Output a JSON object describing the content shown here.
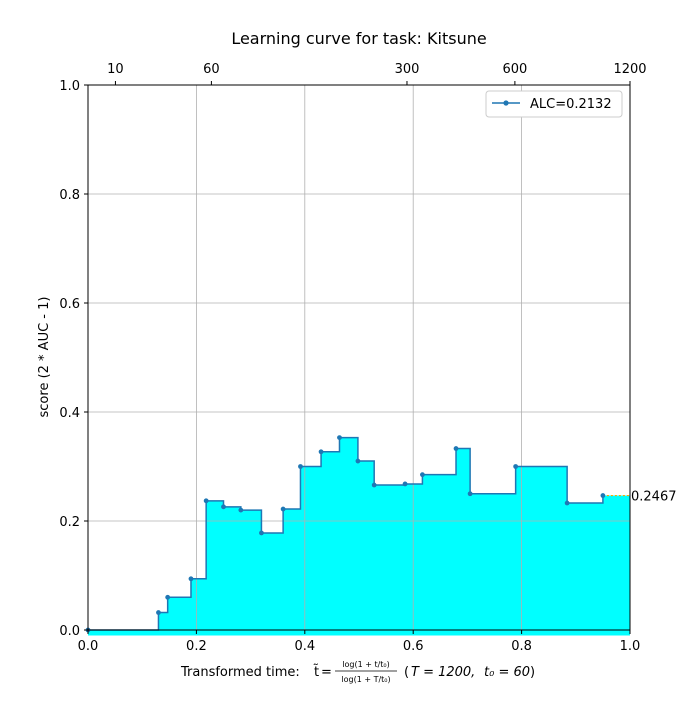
{
  "chart_data": {
    "type": "line",
    "title": "Learning curve for task: Kitsune",
    "ylabel": "score (2 * AUC - 1)",
    "xlabel": {
      "prefix": "Transformed time: ",
      "t_symbol": "t̃",
      "equals": " = ",
      "numerator": "log(1 + t/t₀)",
      "denominator": "log(1 + T/t₀)",
      "params_open": "(",
      "T_param": "T = 1200,",
      "t0_param": "t₀ = 60",
      "params_close": ")"
    },
    "xlim": [
      0.0,
      1.0
    ],
    "ylim": [
      0.0,
      1.0
    ],
    "x_ticks": [
      "0.0",
      "0.2",
      "0.4",
      "0.6",
      "0.8",
      "1.0"
    ],
    "y_ticks": [
      "0.0",
      "0.2",
      "0.4",
      "0.6",
      "0.8",
      "1.0"
    ],
    "top_axis_ticks": [
      {
        "t": 10,
        "label": "10"
      },
      {
        "t": 60,
        "label": "60"
      },
      {
        "t": 300,
        "label": "300"
      },
      {
        "t": 600,
        "label": "600"
      },
      {
        "t": 1200,
        "label": "1200"
      }
    ],
    "time_budget": 1200,
    "t0": 60,
    "grid": true,
    "legend_position": "top-right",
    "series": [
      {
        "name": "ALC=0.2132",
        "color": "#1f77b4",
        "fill_color": "#00ffff",
        "step": "post",
        "x": [
          0.0,
          0.13,
          0.147,
          0.19,
          0.218,
          0.25,
          0.282,
          0.32,
          0.36,
          0.392,
          0.43,
          0.464,
          0.498,
          0.528,
          0.585,
          0.617,
          0.679,
          0.705,
          0.789,
          0.884,
          0.95
        ],
        "y": [
          0.0,
          0.032,
          0.06,
          0.094,
          0.237,
          0.226,
          0.22,
          0.178,
          0.222,
          0.3,
          0.327,
          0.353,
          0.31,
          0.266,
          0.268,
          0.285,
          0.333,
          0.25,
          0.3,
          0.233,
          0.2467
        ]
      }
    ],
    "final_score": {
      "label": "0.2467",
      "value": 0.2467,
      "color": "#ffa500"
    }
  }
}
